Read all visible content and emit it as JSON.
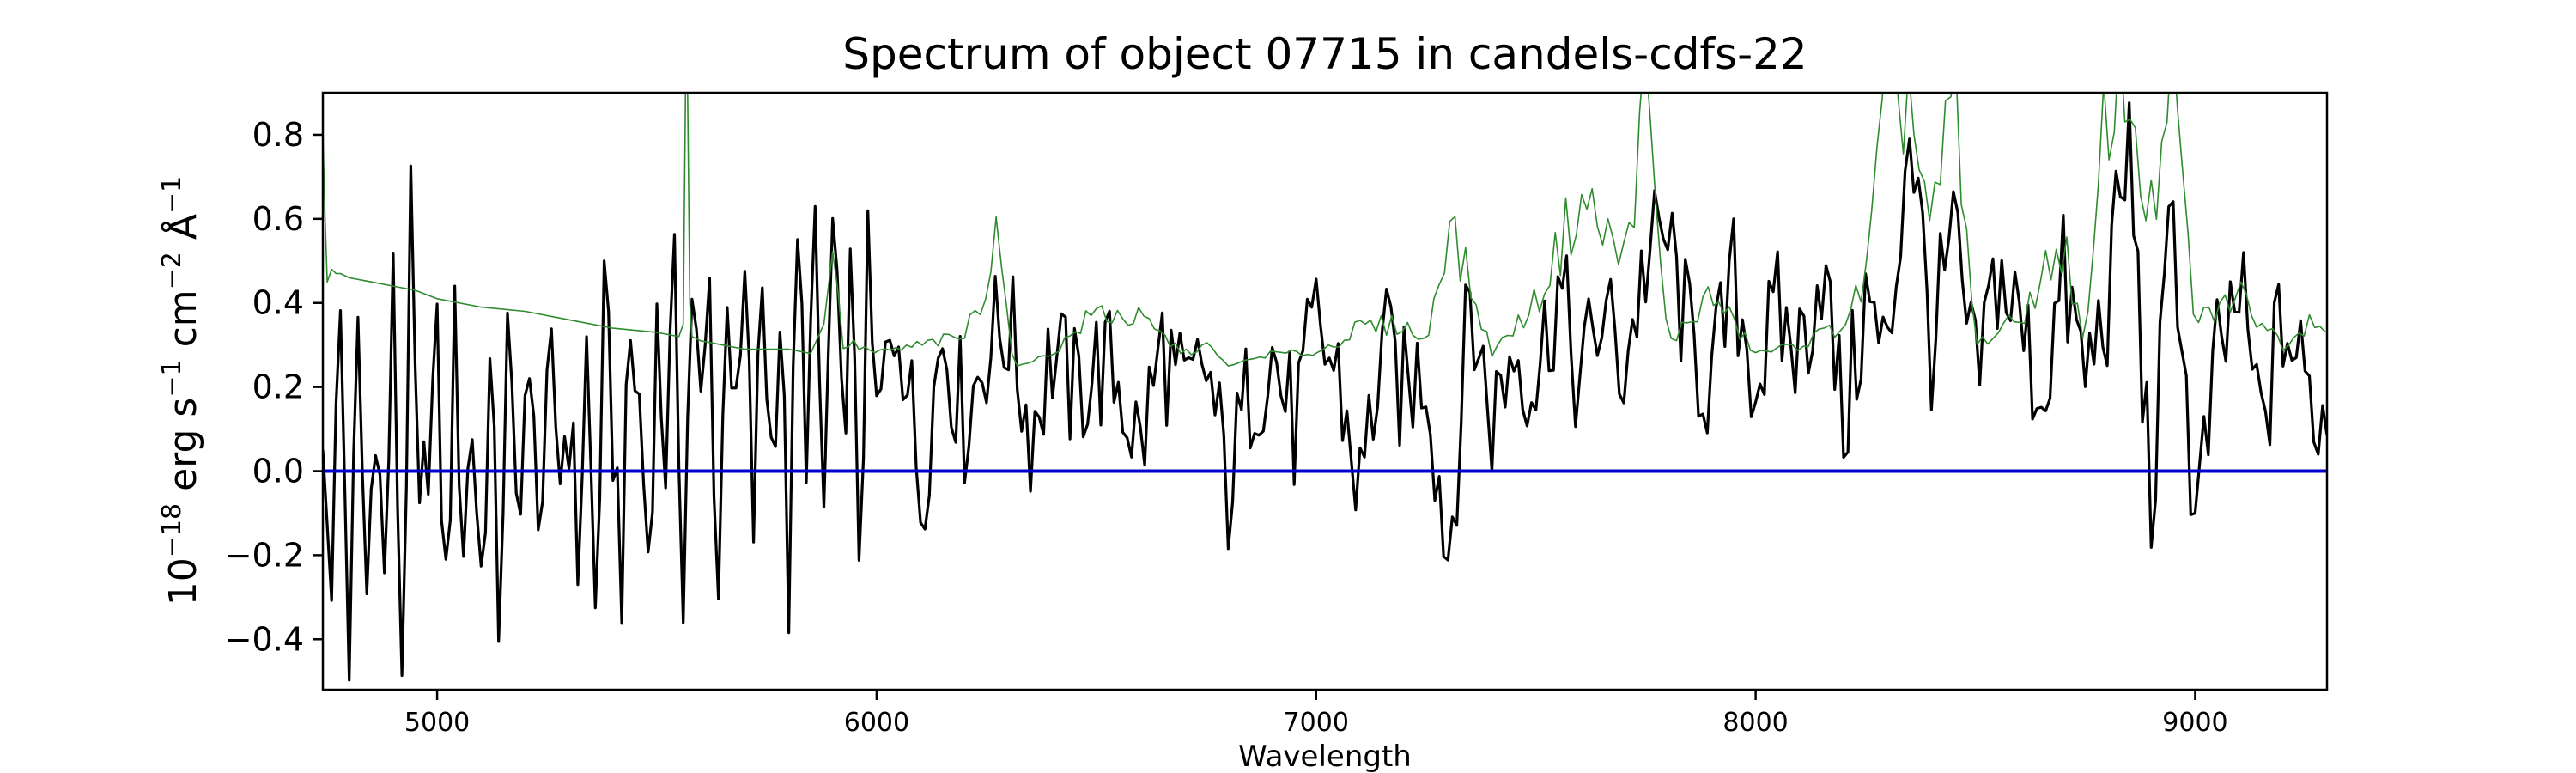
{
  "chart_data": {
    "type": "line",
    "title": "Spectrum of object 07715 in candels-cdfs-22",
    "xlabel": "Wavelength",
    "ylabel": {
      "base": "10",
      "exp_base": "−18",
      "erg": " erg s",
      "exp_s": "−1",
      "cm": " cm",
      "exp_cm": "−2",
      "angstrom": " Å",
      "exp_angstrom": "−1"
    },
    "xlim": [
      4740,
      9300
    ],
    "ylim": [
      -0.52,
      0.9
    ],
    "x_ticks": [
      5000,
      6000,
      7000,
      8000,
      9000
    ],
    "y_ticks": [
      -0.4,
      -0.2,
      0.0,
      0.2,
      0.4,
      0.6,
      0.8
    ],
    "x_tick_labels": [
      "5000",
      "6000",
      "7000",
      "8000",
      "9000"
    ],
    "y_tick_labels": [
      "−0.4",
      "−0.2",
      "0.0",
      "0.2",
      "0.4",
      "0.6",
      "0.8"
    ],
    "grid": false,
    "legend": false,
    "colors": {
      "flux": "#000000",
      "error": "#2e8b2e",
      "zero": "#0000cc"
    },
    "series": [
      {
        "key": "flux",
        "style": "black line",
        "x": [
          4740,
          4760,
          4780,
          4800,
          4820,
          4840,
          4860,
          4880,
          4900,
          4920,
          4940,
          4960,
          4980,
          5000,
          5020,
          5040,
          5060,
          5080,
          5100,
          5120,
          5140,
          5160,
          5180,
          5200,
          5220,
          5240,
          5260,
          5280,
          5300,
          5320,
          5340,
          5360,
          5380,
          5400,
          5420,
          5440,
          5460,
          5480,
          5500,
          5520,
          5540,
          5560,
          5580,
          5600,
          5620,
          5640,
          5660,
          5680,
          5700,
          5720,
          5740,
          5760,
          5780,
          5800,
          5820,
          5840,
          5860,
          5880,
          5900,
          5920,
          5940,
          5960,
          5980,
          6000,
          6050,
          6100,
          6150,
          6200,
          6250,
          6300,
          6350,
          6400,
          6450,
          6500,
          6550,
          6600,
          6650,
          6700,
          6750,
          6800,
          6850,
          6900,
          6950,
          7000,
          7050,
          7100,
          7150,
          7200,
          7250,
          7300,
          7350,
          7400,
          7450,
          7500,
          7550,
          7600,
          7650,
          7700,
          7750,
          7800,
          7850,
          7900,
          7950,
          8000,
          8050,
          8100,
          8150,
          8200,
          8250,
          8300,
          8350,
          8400,
          8450,
          8500,
          8550,
          8600,
          8650,
          8700,
          8750,
          8800,
          8850,
          8900,
          8950,
          9000,
          9050,
          9100,
          9150,
          9200,
          9250,
          9280,
          9300
        ],
        "y": [
          0.05,
          -0.2,
          0.36,
          -0.42,
          0.28,
          -0.3,
          0.2,
          -0.28,
          0.4,
          -0.46,
          0.56,
          -0.2,
          0.1,
          0.25,
          -0.3,
          0.3,
          -0.15,
          0.12,
          -0.25,
          0.22,
          -0.32,
          0.28,
          -0.1,
          0.18,
          0.05,
          -0.05,
          0.2,
          0.02,
          0.15,
          -0.2,
          0.28,
          -0.33,
          0.35,
          0.1,
          -0.22,
          0.3,
          0.15,
          -0.18,
          0.32,
          0.05,
          0.4,
          -0.22,
          0.45,
          0.1,
          0.42,
          -0.29,
          0.5,
          0.05,
          0.42,
          -0.12,
          0.45,
          0.05,
          0.38,
          -0.28,
          0.5,
          0.12,
          0.48,
          -0.1,
          0.56,
          0.08,
          0.42,
          -0.15,
          0.45,
          0.1,
          0.4,
          -0.05,
          0.34,
          0.12,
          0.3,
          0.35,
          0.1,
          0.28,
          0.18,
          0.25,
          0.22,
          0.05,
          0.3,
          0.15,
          0.25,
          -0.05,
          0.2,
          0.28,
          0.1,
          0.34,
          0.22,
          -0.05,
          0.3,
          0.18,
          0.26,
          -0.2,
          0.4,
          0.12,
          0.3,
          0.22,
          0.44,
          0.2,
          0.38,
          0.25,
          0.5,
          0.55,
          0.3,
          0.2,
          0.45,
          0.22,
          0.36,
          0.28,
          0.5,
          0.1,
          0.4,
          0.25,
          0.85,
          0.3,
          0.55,
          0.2,
          0.48,
          0.35,
          0.18,
          0.45,
          0.22,
          0.4,
          0.78,
          -0.1,
          0.65,
          -0.15,
          0.25,
          0.42,
          0.1,
          0.36,
          0.2,
          0.15,
          0.1
        ],
        "overlay": {
          "x0": 4760,
          "x1": 9300,
          "step": 10,
          "amplitude": 0.17
        }
      },
      {
        "key": "error",
        "style": "thin green line",
        "x": [
          4740,
          4745,
          4750,
          4760,
          4770,
          4780,
          4800,
          4850,
          4900,
          4950,
          5000,
          5100,
          5200,
          5300,
          5400,
          5500,
          5550,
          5560,
          5565,
          5570,
          5575,
          5580,
          5600,
          5650,
          5700,
          5800,
          5850,
          5880,
          5900,
          5920,
          5950,
          6000,
          6100,
          6200,
          6250,
          6280,
          6300,
          6320,
          6400,
          6500,
          6600,
          6700,
          6750,
          6800,
          6900,
          7000,
          7100,
          7200,
          7250,
          7300,
          7400,
          7500,
          7600,
          7700,
          7750,
          7800,
          7900,
          8000,
          8100,
          8200,
          8250,
          8300,
          8350,
          8400,
          8450,
          8500,
          8600,
          8700,
          8750,
          8800,
          8850,
          8900,
          8950,
          9000,
          9100,
          9200,
          9280,
          9300
        ],
        "y": [
          0.8,
          0.6,
          0.45,
          0.48,
          0.47,
          0.47,
          0.46,
          0.45,
          0.44,
          0.43,
          0.41,
          0.39,
          0.38,
          0.36,
          0.34,
          0.33,
          0.32,
          0.35,
          0.9,
          0.9,
          0.4,
          0.32,
          0.31,
          0.3,
          0.29,
          0.29,
          0.28,
          0.35,
          0.55,
          0.3,
          0.3,
          0.28,
          0.3,
          0.32,
          0.45,
          0.62,
          0.3,
          0.25,
          0.28,
          0.38,
          0.36,
          0.28,
          0.3,
          0.25,
          0.28,
          0.28,
          0.34,
          0.35,
          0.3,
          0.6,
          0.28,
          0.4,
          0.65,
          0.5,
          0.9,
          0.3,
          0.42,
          0.28,
          0.3,
          0.35,
          0.45,
          0.9,
          0.9,
          0.55,
          0.9,
          0.3,
          0.36,
          0.55,
          0.28,
          0.9,
          0.9,
          0.6,
          0.9,
          0.35,
          0.42,
          0.3,
          0.38,
          0.32
        ],
        "overlay": {
          "x0": 5900,
          "x1": 9300,
          "step": 12,
          "amplitude": 0.09
        }
      },
      {
        "key": "zero",
        "style": "blue line",
        "x": [
          4740,
          9300
        ],
        "y": [
          0.0,
          0.0
        ]
      }
    ]
  }
}
